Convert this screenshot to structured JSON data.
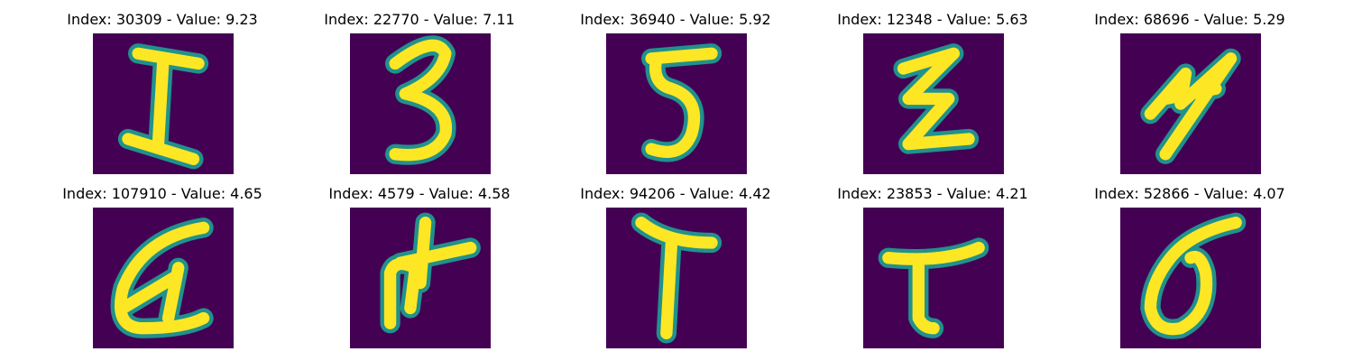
{
  "colors": {
    "background": "#440154",
    "stroke_inner": "#fde725",
    "stroke_edge": "#21918c"
  },
  "panels": [
    {
      "title": "Index: 30309 - Value: 9.23",
      "glyph": "I-with-bars"
    },
    {
      "title": "Index: 22770 - Value: 7.11",
      "glyph": "three"
    },
    {
      "title": "Index: 36940 - Value: 5.92",
      "glyph": "five-like"
    },
    {
      "title": "Index: 12348 - Value: 5.63",
      "glyph": "z-zigzag"
    },
    {
      "title": "Index: 68696 - Value: 5.29",
      "glyph": "scribble"
    },
    {
      "title": "Index: 107910 - Value: 4.65",
      "glyph": "loop-a"
    },
    {
      "title": "Index: 4579 - Value: 4.58",
      "glyph": "cross-n"
    },
    {
      "title": "Index: 94206 - Value: 4.42",
      "glyph": "T"
    },
    {
      "title": "Index: 23853 - Value: 4.21",
      "glyph": "T-bold"
    },
    {
      "title": "Index: 52866 - Value: 4.07",
      "glyph": "sigma"
    }
  ]
}
